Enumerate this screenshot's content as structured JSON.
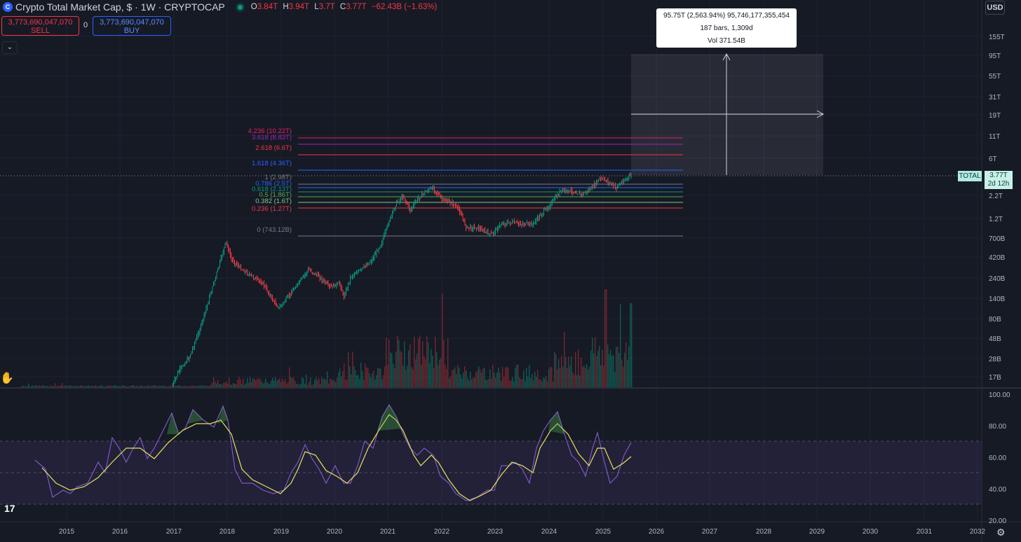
{
  "header": {
    "symbol_title": "Crypto Total Market Cap, $ · 1W · CRYPTOCAP",
    "ohlc": {
      "o_label": "O",
      "o_value": "3.84T",
      "h_label": "H",
      "h_value": "3.94T",
      "l_label": "L",
      "l_value": "3.7T",
      "c_label": "C",
      "c_value": "3.77T",
      "change": "−62.43B (−1.63%)"
    }
  },
  "trade": {
    "sell_price": "3,773,690,047,070",
    "sell_label": "SELL",
    "spread": "0",
    "buy_price": "3,773,690,047,070",
    "buy_label": "BUY"
  },
  "currency": "USD",
  "measure_tooltip": {
    "line1": "95.75T (2,563.94%) 95,746,177,355,454",
    "line2": "187 bars, 1,309d",
    "line3": "Vol 371.54B"
  },
  "symbol_tag": {
    "name": "TOTAL",
    "price": "3.77T",
    "countdown": "2d 12h"
  },
  "price_axis_labels": [
    "155T",
    "95T",
    "55T",
    "31T",
    "19T",
    "11T",
    "6T",
    "2.2T",
    "1.2T",
    "700B",
    "420B",
    "240B",
    "140B",
    "80B",
    "48B",
    "28B",
    "17B"
  ],
  "rsi_axis_labels": [
    "100.00",
    "80.00",
    "60.00",
    "40.00",
    "20.00"
  ],
  "time_axis_labels": [
    "2015",
    "2016",
    "2017",
    "2018",
    "2019",
    "2020",
    "2021",
    "2022",
    "2023",
    "2024",
    "2025",
    "2026",
    "2027",
    "2028",
    "2029",
    "2030",
    "2031",
    "2032"
  ],
  "fib_levels": [
    {
      "label": "4.236 (10.22T)",
      "color": "#e91e63"
    },
    {
      "label": "3.618 (8.83T)",
      "color": "#9c27b0"
    },
    {
      "label": "2.618 (6.6T)",
      "color": "#f23645"
    },
    {
      "label": "1.618 (4.36T)",
      "color": "#2962ff"
    },
    {
      "label": "1 (2.98T)",
      "color": "#787b86"
    },
    {
      "label": "0.786 (2.5T)",
      "color": "#2962ff"
    },
    {
      "label": "0.618 (2.13T)",
      "color": "#089981"
    },
    {
      "label": "0.5 (1.86T)",
      "color": "#4caf50"
    },
    {
      "label": "0.382 (1.6T)",
      "color": "#81c784"
    },
    {
      "label": "0.236 (1.27T)",
      "color": "#f23645"
    },
    {
      "label": "0 (743.12B)",
      "color": "#787b86"
    }
  ],
  "colors": {
    "up": "#089981",
    "down": "#f23645",
    "rsi": "#7e57c2",
    "rsi_ma": "#e6e35a",
    "background": "#161a25"
  },
  "icons": {
    "logo": "tradingview-logo-icon",
    "settings": "gear-icon",
    "collapse": "chevron-down-icon",
    "cursor": "hand-cursor-icon"
  }
}
